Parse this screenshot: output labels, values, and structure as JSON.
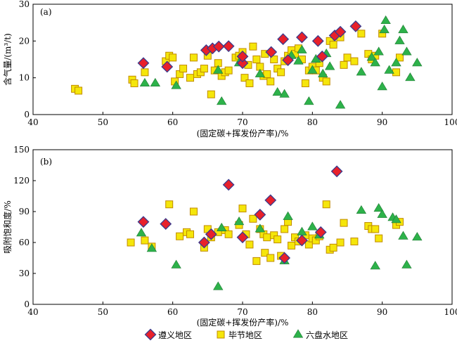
{
  "chart_data": [
    {
      "type": "scatter",
      "panel_label": "(a)",
      "xlabel": "(固定碳+挥发份产率)/%",
      "ylabel": "含气量/(m³/t)",
      "xlim": [
        40,
        100
      ],
      "ylim": [
        0,
        30
      ],
      "xticks": [
        "40",
        "50",
        "60",
        "70",
        "80",
        "90",
        "100"
      ],
      "yticks": [
        "0",
        "10",
        "20",
        "30"
      ],
      "grid": false,
      "series": [
        {
          "name": "遵义地区",
          "marker": "diamond",
          "color": "#e8202a",
          "edge": "#3a3a8c",
          "x": [
            55.8,
            59.2,
            64.8,
            65.7,
            66.6,
            68.0,
            70.0,
            70.0,
            74.1,
            75.8,
            76.5,
            78.5,
            80.8,
            81.4,
            83.2,
            84.0,
            86.2
          ],
          "y": [
            14.0,
            13.0,
            17.5,
            18.0,
            18.5,
            18.6,
            14.0,
            15.8,
            17.0,
            20.5,
            14.8,
            21.0,
            20.0,
            15.8,
            21.5,
            22.5,
            24.0
          ]
        },
        {
          "name": "毕节地区",
          "marker": "square",
          "color": "#f5e60a",
          "edge": "#c08a00",
          "x": [
            46.0,
            46.5,
            54.2,
            54.5,
            56.0,
            59.0,
            59.5,
            60.0,
            60.3,
            61.0,
            61.5,
            62.5,
            63.0,
            63.5,
            64.0,
            64.5,
            65.0,
            65.5,
            66.0,
            66.5,
            67.0,
            67.5,
            68.0,
            69.0,
            69.5,
            70.0,
            70.3,
            70.8,
            71.0,
            71.5,
            72.0,
            72.5,
            73.0,
            73.2,
            73.5,
            74.0,
            74.5,
            75.0,
            75.5,
            76.0,
            76.5,
            77.0,
            77.5,
            78.0,
            78.5,
            79.0,
            79.5,
            80.0,
            80.5,
            81.0,
            81.5,
            82.0,
            82.5,
            83.0,
            84.0,
            84.5,
            85.0,
            86.0,
            87.0,
            88.0,
            88.5,
            89.0,
            90.0,
            92.0,
            92.5
          ],
          "y": [
            7.0,
            6.5,
            9.5,
            8.5,
            11.5,
            14.5,
            16.0,
            15.5,
            9.0,
            11.0,
            12.5,
            10.0,
            15.5,
            11.0,
            11.5,
            12.5,
            16.0,
            5.5,
            12.0,
            14.0,
            10.5,
            11.5,
            12.0,
            15.5,
            16.0,
            17.0,
            10.0,
            13.5,
            8.5,
            18.5,
            15.0,
            13.0,
            10.5,
            16.5,
            11.0,
            9.0,
            15.0,
            12.5,
            11.5,
            14.5,
            16.0,
            17.5,
            16.5,
            18.0,
            15.0,
            8.5,
            12.0,
            13.0,
            12.0,
            14.0,
            10.0,
            9.0,
            20.0,
            19.0,
            21.0,
            13.5,
            15.5,
            14.5,
            22.0,
            16.5,
            15.0,
            16.0,
            22.0,
            11.5,
            15.5
          ]
        },
        {
          "name": "六盘水地区",
          "marker": "triangle",
          "color": "#2db24a",
          "edge": "#1f7a33",
          "x": [
            56.0,
            57.5,
            60.5,
            66.5,
            67.0,
            69.5,
            72.5,
            75.0,
            76.0,
            77.0,
            78.0,
            78.5,
            79.5,
            80.0,
            80.5,
            81.5,
            82.0,
            82.5,
            84.0,
            87.0,
            88.5,
            89.0,
            89.5,
            90.0,
            90.3,
            90.5,
            91.0,
            92.0,
            92.5,
            93.0,
            93.5,
            94.0,
            95.0
          ],
          "y": [
            8.5,
            8.5,
            7.8,
            12.0,
            3.5,
            14.0,
            11.0,
            6.0,
            5.5,
            16.0,
            14.5,
            17.5,
            3.5,
            12.0,
            15.0,
            11.0,
            16.5,
            13.0,
            2.5,
            11.5,
            15.5,
            14.0,
            17.0,
            7.5,
            23.0,
            25.5,
            12.0,
            14.0,
            20.0,
            23.0,
            17.0,
            10.0,
            14.0
          ]
        }
      ]
    },
    {
      "type": "scatter",
      "panel_label": "(b)",
      "xlabel": "(固定碳+挥发份产率)/%",
      "ylabel": "吸附饱和度/%",
      "xlim": [
        40,
        100
      ],
      "ylim": [
        0,
        150
      ],
      "xticks": [
        "40",
        "50",
        "60",
        "70",
        "80",
        "90",
        "100"
      ],
      "yticks": [
        "0",
        "30",
        "60",
        "90",
        "120",
        "150"
      ],
      "grid": false,
      "series": [
        {
          "name": "遵义地区",
          "marker": "diamond",
          "color": "#e8202a",
          "edge": "#3a3a8c",
          "x": [
            55.8,
            59.0,
            64.5,
            65.5,
            68.0,
            70.0,
            72.5,
            74.0,
            76.0,
            78.5,
            81.2,
            83.5
          ],
          "y": [
            80,
            78,
            60,
            68,
            116,
            65,
            87,
            101,
            45,
            62,
            70,
            129
          ]
        },
        {
          "name": "毕节地区",
          "marker": "square",
          "color": "#f5e60a",
          "edge": "#c08a00",
          "x": [
            54.0,
            56.0,
            57.0,
            59.5,
            61.0,
            62.0,
            62.5,
            63.0,
            64.5,
            65.0,
            65.5,
            66.5,
            67.5,
            68.0,
            69.5,
            70.0,
            70.5,
            71.0,
            71.5,
            72.0,
            72.5,
            73.0,
            73.2,
            73.5,
            74.0,
            74.5,
            75.0,
            75.5,
            76.0,
            76.5,
            77.0,
            77.5,
            78.0,
            79.0,
            79.5,
            80.0,
            80.5,
            81.0,
            82.0,
            82.5,
            83.0,
            84.0,
            84.5,
            86.0,
            88.0,
            88.5,
            89.0,
            89.5,
            92.0,
            92.5
          ],
          "y": [
            60,
            62,
            56,
            97,
            66,
            70,
            68,
            90,
            55,
            73,
            65,
            70,
            72,
            68,
            77,
            93,
            68,
            58,
            83,
            42,
            73,
            68,
            50,
            65,
            45,
            67,
            63,
            47,
            73,
            80,
            57,
            65,
            61,
            67,
            58,
            64,
            62,
            66,
            97,
            53,
            55,
            60,
            79,
            61,
            76,
            73,
            73,
            64,
            77,
            80
          ]
        },
        {
          "name": "六盘水地区",
          "marker": "triangle",
          "color": "#2db24a",
          "edge": "#1f7a33",
          "x": [
            55.5,
            57.0,
            60.5,
            66.5,
            67.0,
            69.5,
            72.5,
            76.0,
            76.5,
            78.5,
            80.0,
            81.0,
            87.0,
            89.0,
            89.5,
            90.0,
            91.5,
            92.0,
            93.0,
            93.5,
            95.0
          ],
          "y": [
            69,
            54,
            38,
            17,
            74,
            80,
            73,
            42,
            85,
            70,
            75,
            67,
            91,
            37,
            93,
            87,
            84,
            82,
            66,
            38,
            65
          ]
        }
      ]
    }
  ],
  "legend": {
    "placement": "bottom-center",
    "items": [
      {
        "name": "遵义地区",
        "marker": "diamond",
        "color": "#e8202a",
        "edge": "#3a3a8c"
      },
      {
        "name": "毕节地区",
        "marker": "square",
        "color": "#f5e60a",
        "edge": "#c08a00"
      },
      {
        "name": "六盘水地区",
        "marker": "triangle",
        "color": "#2db24a",
        "edge": "#1f7a33"
      }
    ]
  }
}
